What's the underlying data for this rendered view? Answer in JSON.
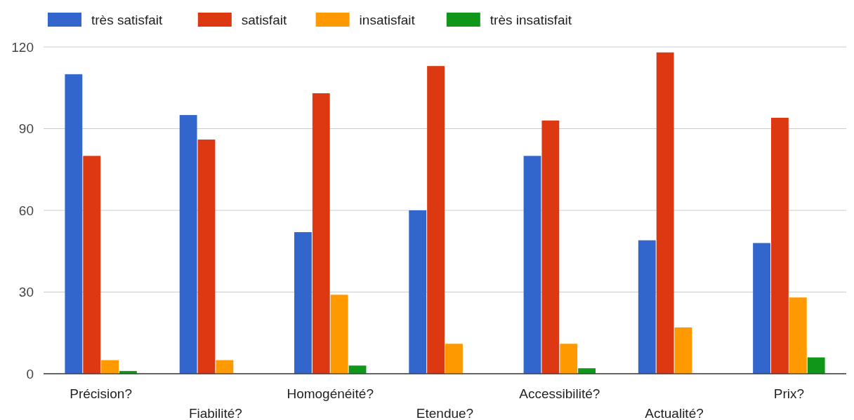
{
  "chart_data": {
    "type": "bar",
    "categories": [
      "Précision?",
      "Fiabilité?",
      "Homogénéité?",
      "Etendue?",
      "Accessibilité?",
      "Actualité?",
      "Prix?"
    ],
    "series": [
      {
        "name": "très satisfait",
        "color": "#3366cc",
        "values": [
          110,
          95,
          52,
          60,
          80,
          49,
          48
        ]
      },
      {
        "name": "satisfait",
        "color": "#dc3912",
        "values": [
          80,
          86,
          103,
          113,
          93,
          118,
          94
        ]
      },
      {
        "name": "insatisfait",
        "color": "#ff9900",
        "values": [
          5,
          5,
          29,
          11,
          11,
          17,
          28
        ]
      },
      {
        "name": "très insatisfait",
        "color": "#109618",
        "values": [
          1,
          0,
          3,
          0,
          2,
          0,
          6
        ]
      }
    ],
    "ylim": [
      0,
      120
    ],
    "yticks": [
      0,
      30,
      60,
      90,
      120
    ],
    "grid": "y",
    "legend": "top"
  }
}
